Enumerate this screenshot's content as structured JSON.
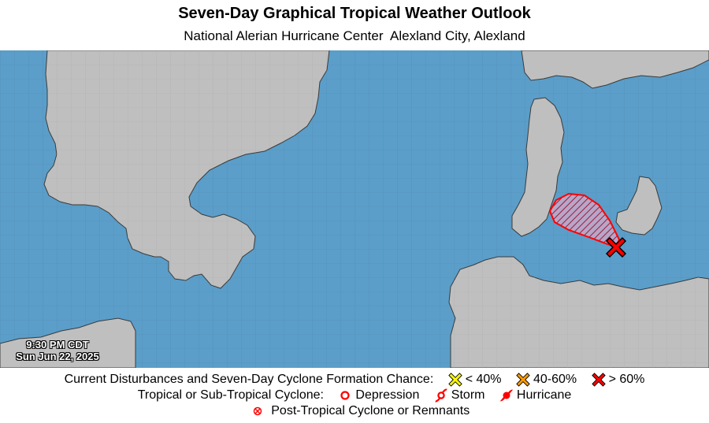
{
  "header": {
    "title": "Seven-Day Graphical Tropical Weather Outlook",
    "subtitle": "National Alerian Hurricane Center  Alexland City, Alexland"
  },
  "timestamp": {
    "time": "9:30 PM CDT",
    "date": "Sun Jun 22, 2025"
  },
  "disturbance": {
    "chance_category": "> 60%",
    "marker_color": "#ff0000",
    "area_color": "#ff0000"
  },
  "colors": {
    "ocean": "#5b9ec9",
    "land": "#bfbfbf",
    "grid": "#4f8db6",
    "low": "#ffff00",
    "medium": "#ff9900",
    "high": "#ff0000"
  },
  "legend": {
    "row1_label": "Current Disturbances and Seven-Day Cyclone Formation Chance:",
    "low_label": "< 40%",
    "medium_label": "40-60%",
    "high_label": "> 60%",
    "row2_label": "Tropical or Sub-Tropical Cyclone:",
    "depression_label": "Depression",
    "storm_label": "Storm",
    "hurricane_label": "Hurricane",
    "post_tropical_label": "Post-Tropical Cyclone or Remnants"
  }
}
